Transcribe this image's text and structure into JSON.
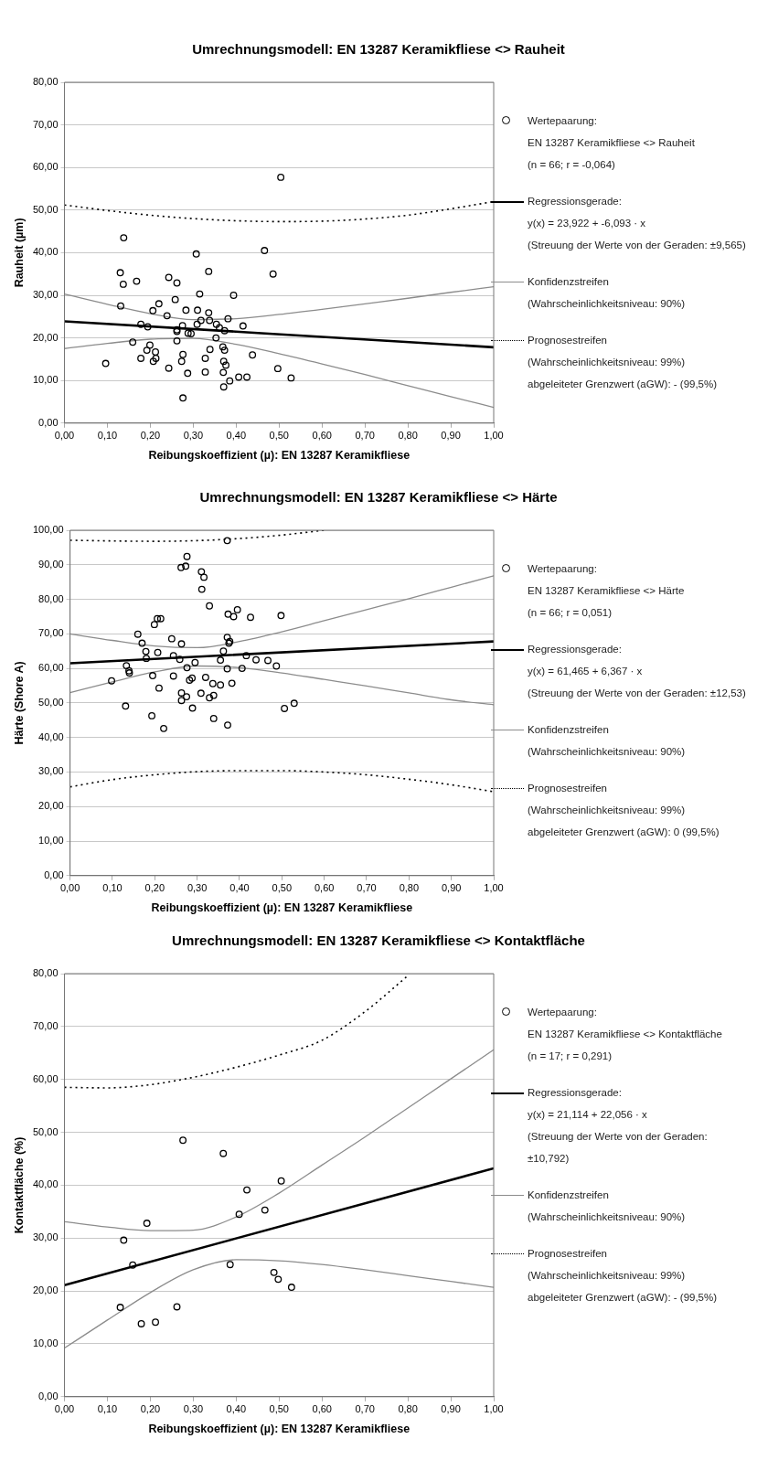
{
  "chart_data": [
    {
      "type": "scatter",
      "title": "Umrechnungsmodell: EN 13287 Keramikfliese <> Rauheit",
      "xlabel": "Reibungskoeffizient (µ): EN 13287 Keramikfliese",
      "ylabel": "Rauheit (µm)",
      "grid": "y",
      "legend": "right",
      "xlim": [
        0,
        1
      ],
      "xticks": [
        {
          "value": 0,
          "label": "0,00"
        },
        {
          "value": 0.1,
          "label": "0,10"
        },
        {
          "value": 0.2,
          "label": "0,20"
        },
        {
          "value": 0.3,
          "label": "0,30"
        },
        {
          "value": 0.4,
          "label": "0,40"
        },
        {
          "value": 0.5,
          "label": "0,50"
        },
        {
          "value": 0.6,
          "label": "0,60"
        },
        {
          "value": 0.7,
          "label": "0,70"
        },
        {
          "value": 0.8,
          "label": "0,80"
        },
        {
          "value": 0.9,
          "label": "0,90"
        },
        {
          "value": 1,
          "label": "1,00"
        }
      ],
      "ylim": [
        0,
        80
      ],
      "yticks": [
        {
          "value": 0,
          "label": "0,00"
        },
        {
          "value": 10,
          "label": "10,00"
        },
        {
          "value": 20,
          "label": "20,00"
        },
        {
          "value": 30,
          "label": "30,00"
        },
        {
          "value": 40,
          "label": "40,00"
        },
        {
          "value": 50,
          "label": "50,00"
        },
        {
          "value": 60,
          "label": "60,00"
        },
        {
          "value": 70,
          "label": "70,00"
        },
        {
          "value": 80,
          "label": "80,00"
        }
      ],
      "series": [
        {
          "name": "Wertepaarung:\nEN 13287 Keramikfliese <> Rauheit\n(n = 66;  r = -0,064)",
          "marker": "circle",
          "color": "#000000",
          "x": [
            0.138,
            0.13,
            0.137,
            0.168,
            0.131,
            0.096,
            0.178,
            0.194,
            0.159,
            0.199,
            0.192,
            0.212,
            0.178,
            0.213,
            0.207,
            0.206,
            0.22,
            0.243,
            0.262,
            0.258,
            0.239,
            0.275,
            0.262,
            0.262,
            0.262,
            0.283,
            0.288,
            0.295,
            0.243,
            0.276,
            0.273,
            0.287,
            0.276,
            0.307,
            0.336,
            0.315,
            0.31,
            0.336,
            0.309,
            0.318,
            0.338,
            0.354,
            0.361,
            0.373,
            0.353,
            0.394,
            0.381,
            0.416,
            0.369,
            0.373,
            0.339,
            0.328,
            0.328,
            0.371,
            0.376,
            0.37,
            0.371,
            0.385,
            0.406,
            0.425,
            0.438,
            0.466,
            0.486,
            0.504,
            0.497,
            0.528
          ],
          "values": [
            43.5,
            35.3,
            32.6,
            33.3,
            27.5,
            14.0,
            23.2,
            22.6,
            19.0,
            18.3,
            17.1,
            16.7,
            15.2,
            15.2,
            14.5,
            26.4,
            28.0,
            34.2,
            32.9,
            29.0,
            25.2,
            22.9,
            21.9,
            21.5,
            19.3,
            26.5,
            21.1,
            21.0,
            12.9,
            16.1,
            14.5,
            11.7,
            5.9,
            39.7,
            35.6,
            30.3,
            26.5,
            25.9,
            23.2,
            24.1,
            24.1,
            23.2,
            22.4,
            21.7,
            20.0,
            30.0,
            24.5,
            22.8,
            17.9,
            17.1,
            17.3,
            15.2,
            12.0,
            14.5,
            13.6,
            11.9,
            8.5,
            9.9,
            10.8,
            10.8,
            16.0,
            40.5,
            35.0,
            57.7,
            12.8,
            10.6
          ]
        },
        {
          "name": "Regressionsgerade:\ny(x) = 23,922 + -6,093 · x\n(Streuung der Werte von der Geraden: ±9,565)",
          "type": "line",
          "color": "#000000",
          "x": [
            0,
            1
          ],
          "values": [
            23.9,
            17.8
          ]
        },
        {
          "name": "Konfidenzstreifen\n(Wahrscheinlichkeitsniveau: 90%)",
          "type": "line",
          "color": "#8c8c8c",
          "x": [
            0,
            0.1,
            0.2,
            0.3,
            0.4,
            0.5,
            0.6,
            0.7,
            0.8,
            0.9,
            1
          ],
          "values": [
            30.3,
            27.9,
            25.7,
            24.3,
            24.5,
            25.5,
            26.7,
            28.0,
            29.3,
            30.7,
            32.0
          ]
        },
        {
          "type": "line",
          "color": "#8c8c8c",
          "x": [
            0,
            0.1,
            0.2,
            0.3,
            0.4,
            0.5,
            0.6,
            0.7,
            0.8,
            0.9,
            1
          ],
          "values": [
            17.5,
            18.7,
            19.7,
            19.9,
            18.5,
            16.3,
            13.9,
            11.4,
            8.8,
            6.2,
            3.7
          ]
        },
        {
          "name": "Prognosestreifen\n(Wahrscheinlichkeitsniveau: 99%)\nabgeleiteter Grenzwert (aGW): -   (99,5%)",
          "type": "line",
          "line_style": "dotted",
          "color": "#000000",
          "x": [
            0,
            0.1,
            0.2,
            0.3,
            0.4,
            0.5,
            0.6,
            0.7,
            0.8,
            0.9,
            1
          ],
          "values": [
            51.2,
            49.9,
            48.8,
            48.0,
            47.5,
            47.3,
            47.4,
            47.9,
            48.8,
            50.3,
            52.0
          ]
        }
      ]
    },
    {
      "type": "scatter",
      "title": "Umrechnungsmodell: EN 13287 Keramikfliese <> Härte",
      "xlabel": "Reibungskoeffizient (µ): EN 13287 Keramikfliese",
      "ylabel": "Härte (Shore A)",
      "grid": "y",
      "legend": "right",
      "xlim": [
        0,
        1
      ],
      "xticks": [
        {
          "value": 0,
          "label": "0,00"
        },
        {
          "value": 0.1,
          "label": "0,10"
        },
        {
          "value": 0.2,
          "label": "0,20"
        },
        {
          "value": 0.3,
          "label": "0,30"
        },
        {
          "value": 0.4,
          "label": "0,40"
        },
        {
          "value": 0.5,
          "label": "0,50"
        },
        {
          "value": 0.6,
          "label": "0,60"
        },
        {
          "value": 0.7,
          "label": "0,70"
        },
        {
          "value": 0.8,
          "label": "0,80"
        },
        {
          "value": 0.9,
          "label": "0,90"
        },
        {
          "value": 1,
          "label": "1,00"
        }
      ],
      "ylim": [
        0,
        100
      ],
      "yticks": [
        {
          "value": 0,
          "label": "0,00"
        },
        {
          "value": 10,
          "label": "10,00"
        },
        {
          "value": 20,
          "label": "20,00"
        },
        {
          "value": 30,
          "label": "30,00"
        },
        {
          "value": 40,
          "label": "40,00"
        },
        {
          "value": 50,
          "label": "50,00"
        },
        {
          "value": 60,
          "label": "60,00"
        },
        {
          "value": 70,
          "label": "70,00"
        },
        {
          "value": 80,
          "label": "80,00"
        },
        {
          "value": 90,
          "label": "90,00"
        },
        {
          "value": 100,
          "label": "100,00"
        }
      ],
      "series": [
        {
          "name": "Wertepaarung:\nEN 13287 Keramikfliese <> Härte\n(n = 66;  r = 0,051)",
          "marker": "circle",
          "color": "#000000",
          "x": [
            0.371,
            0.276,
            0.262,
            0.273,
            0.31,
            0.316,
            0.311,
            0.329,
            0.199,
            0.206,
            0.214,
            0.373,
            0.395,
            0.386,
            0.426,
            0.498,
            0.16,
            0.17,
            0.24,
            0.263,
            0.371,
            0.377,
            0.375,
            0.179,
            0.18,
            0.207,
            0.244,
            0.259,
            0.362,
            0.355,
            0.416,
            0.439,
            0.467,
            0.487,
            0.295,
            0.276,
            0.371,
            0.406,
            0.133,
            0.139,
            0.14,
            0.098,
            0.195,
            0.244,
            0.21,
            0.288,
            0.282,
            0.32,
            0.337,
            0.355,
            0.382,
            0.263,
            0.275,
            0.263,
            0.309,
            0.329,
            0.339,
            0.289,
            0.131,
            0.193,
            0.221,
            0.339,
            0.372,
            0.506,
            0.529
          ],
          "values": [
            97.0,
            92.4,
            89.2,
            89.6,
            88.0,
            86.4,
            82.9,
            78.1,
            72.7,
            74.4,
            74.4,
            75.7,
            77.0,
            75.0,
            74.8,
            75.3,
            69.9,
            67.3,
            68.6,
            67.1,
            69.0,
            67.8,
            67.3,
            64.9,
            62.9,
            64.6,
            63.7,
            62.6,
            65.0,
            62.4,
            63.7,
            62.5,
            62.3,
            60.7,
            61.7,
            60.2,
            59.9,
            60.0,
            60.8,
            59.3,
            58.7,
            56.4,
            57.9,
            57.8,
            54.3,
            57.2,
            56.6,
            57.4,
            55.6,
            55.2,
            55.7,
            52.9,
            51.8,
            50.7,
            52.8,
            51.5,
            52.2,
            48.5,
            49.1,
            46.3,
            42.6,
            45.5,
            43.6,
            48.4,
            49.9
          ]
        },
        {
          "name": "Regressionsgerade:\ny(x) = 61,465 + 6,367 · x\n(Streuung der Werte von der Geraden: ±12,53)",
          "type": "line",
          "color": "#000000",
          "x": [
            0,
            1
          ],
          "values": [
            61.5,
            67.8
          ]
        },
        {
          "name": "Konfidenzstreifen\n(Wahrscheinlichkeitsniveau: 90%)",
          "type": "line",
          "color": "#8c8c8c",
          "x": [
            0,
            0.1,
            0.2,
            0.3,
            0.4,
            0.5,
            0.6,
            0.7,
            0.8,
            0.9,
            1
          ],
          "values": [
            70.0,
            68.1,
            66.5,
            66.0,
            67.8,
            70.6,
            73.8,
            77.0,
            80.2,
            83.5,
            86.8
          ]
        },
        {
          "type": "line",
          "color": "#8c8c8c",
          "x": [
            0,
            0.1,
            0.2,
            0.3,
            0.4,
            0.5,
            0.6,
            0.7,
            0.8,
            0.9,
            1
          ],
          "values": [
            53.0,
            56.1,
            59.0,
            60.7,
            60.2,
            58.7,
            56.8,
            54.9,
            52.9,
            50.9,
            49.5
          ]
        },
        {
          "name": "Prognosestreifen\n(Wahrscheinlichkeitsniveau: 99%)\nabgeleiteter Grenzwert (aGW): 0   (99,5%)",
          "type": "line",
          "line_style": "dotted",
          "color": "#000000",
          "x": [
            0,
            0.1,
            0.2,
            0.3,
            0.4,
            0.5,
            0.6
          ],
          "values": [
            97.1,
            96.9,
            96.8,
            97.0,
            97.6,
            98.6,
            100.0
          ]
        },
        {
          "type": "line",
          "line_style": "dotted",
          "color": "#000000",
          "x": [
            0,
            0.1,
            0.2,
            0.3,
            0.4,
            0.5,
            0.6,
            0.7,
            0.8,
            0.9,
            1
          ],
          "values": [
            25.7,
            27.8,
            29.2,
            30.1,
            30.4,
            30.4,
            30.0,
            29.2,
            27.9,
            26.3,
            24.3
          ]
        }
      ]
    },
    {
      "type": "scatter",
      "title": "Umrechnungsmodell: EN 13287 Keramikfliese <> Kontaktfläche",
      "xlabel": "Reibungskoeffizient (µ): EN 13287 Keramikfliese",
      "ylabel": "Kontaktfläche (%)",
      "grid": "y",
      "legend": "right",
      "xlim": [
        0,
        1
      ],
      "xticks": [
        {
          "value": 0,
          "label": "0,00"
        },
        {
          "value": 0.1,
          "label": "0,10"
        },
        {
          "value": 0.2,
          "label": "0,20"
        },
        {
          "value": 0.3,
          "label": "0,30"
        },
        {
          "value": 0.4,
          "label": "0,40"
        },
        {
          "value": 0.5,
          "label": "0,50"
        },
        {
          "value": 0.6,
          "label": "0,60"
        },
        {
          "value": 0.7,
          "label": "0,70"
        },
        {
          "value": 0.8,
          "label": "0,80"
        },
        {
          "value": 0.9,
          "label": "0,90"
        },
        {
          "value": 1,
          "label": "1,00"
        }
      ],
      "ylim": [
        0,
        80
      ],
      "yticks": [
        {
          "value": 0,
          "label": "0,00"
        },
        {
          "value": 10,
          "label": "10,00"
        },
        {
          "value": 20,
          "label": "20,00"
        },
        {
          "value": 30,
          "label": "30,00"
        },
        {
          "value": 40,
          "label": "40,00"
        },
        {
          "value": 50,
          "label": "50,00"
        },
        {
          "value": 60,
          "label": "60,00"
        },
        {
          "value": 70,
          "label": "70,00"
        },
        {
          "value": 80,
          "label": "80,00"
        }
      ],
      "series": [
        {
          "name": "Wertepaarung:\nEN 13287 Keramikfliese <> Kontaktfläche\n(n = 17;  r = 0,291)",
          "marker": "circle",
          "color": "#000000",
          "x": [
            0.276,
            0.37,
            0.505,
            0.425,
            0.407,
            0.467,
            0.192,
            0.138,
            0.159,
            0.386,
            0.488,
            0.498,
            0.529,
            0.13,
            0.262,
            0.179,
            0.212
          ],
          "values": [
            48.5,
            46.0,
            40.8,
            39.1,
            34.5,
            35.3,
            32.8,
            29.6,
            24.9,
            25.0,
            23.5,
            22.2,
            20.7,
            16.9,
            17.0,
            13.8,
            14.1
          ]
        },
        {
          "name": "Regressionsgerade:\ny(x) = 21,114 + 22,056 · x\n(Streuung der Werte von der Geraden:\n±10,792)",
          "type": "line",
          "color": "#000000",
          "x": [
            0,
            1
          ],
          "values": [
            21.1,
            43.2
          ]
        },
        {
          "name": "Konfidenzstreifen\n(Wahrscheinlichkeitsniveau: 90%)",
          "type": "line",
          "color": "#8c8c8c",
          "x": [
            0,
            0.1,
            0.2,
            0.3,
            0.4,
            0.5,
            0.6,
            0.7,
            0.8,
            0.9,
            1
          ],
          "values": [
            33.1,
            32.1,
            31.4,
            31.5,
            34.0,
            38.5,
            43.8,
            49.1,
            54.6,
            60.1,
            65.6
          ]
        },
        {
          "type": "line",
          "color": "#8c8c8c",
          "x": [
            0,
            0.1,
            0.2,
            0.3,
            0.4,
            0.5,
            0.6,
            0.7,
            0.8,
            0.9,
            1
          ],
          "values": [
            9.2,
            14.5,
            19.7,
            24.0,
            25.9,
            25.7,
            25.0,
            24.0,
            22.9,
            21.8,
            20.7
          ]
        },
        {
          "name": "Prognosestreifen\n(Wahrscheinlichkeitsniveau: 99%)\nabgeleiteter Grenzwert (aGW): -   (99,5%)",
          "type": "line",
          "line_style": "dotted",
          "color": "#000000",
          "x": [
            0,
            0.1,
            0.2,
            0.3,
            0.4,
            0.5,
            0.6,
            0.7,
            0.8
          ],
          "values": [
            58.5,
            58.4,
            59.0,
            60.4,
            62.3,
            64.6,
            67.4,
            72.8,
            79.6
          ]
        }
      ]
    }
  ]
}
